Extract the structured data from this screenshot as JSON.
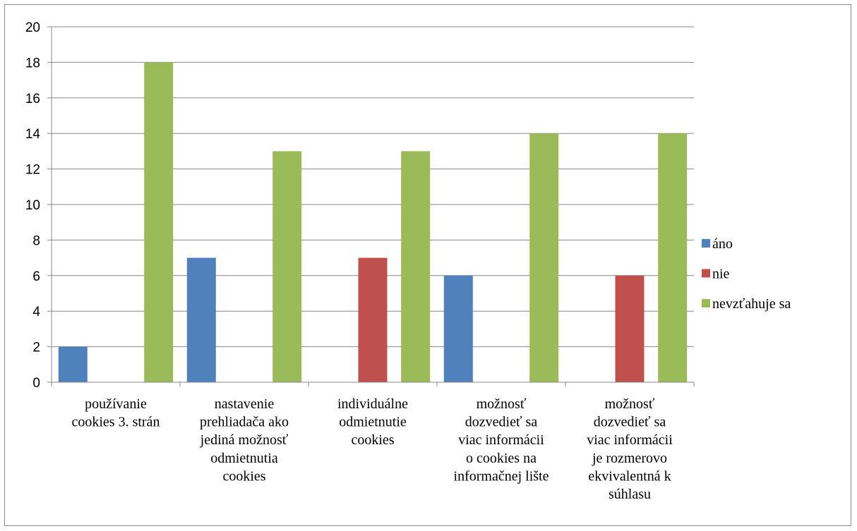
{
  "chart_data": {
    "type": "bar",
    "title": "",
    "xlabel": "",
    "ylabel": "",
    "ylim": [
      0,
      20
    ],
    "yticks": [
      0,
      2,
      4,
      6,
      8,
      10,
      12,
      14,
      16,
      18,
      20
    ],
    "grid": true,
    "legend_position": "right",
    "categories": [
      [
        "používanie",
        "cookies 3. strán"
      ],
      [
        "nastavenie",
        "prehliadača ako",
        "jediná možnosť",
        "odmietnutia",
        "cookies"
      ],
      [
        "individuálne",
        "odmietnutie",
        "cookies"
      ],
      [
        "možnosť",
        "dozvedieť sa",
        "viac informácii",
        "o cookies na",
        "informačnej lište"
      ],
      [
        "možnosť",
        "dozvedieť sa",
        "viac informácii",
        "je rozmerovo",
        "ekvivalentná k",
        "súhlasu"
      ]
    ],
    "series": [
      {
        "name": "áno",
        "color": "#4f81bd",
        "values": [
          2,
          7,
          0,
          6,
          0
        ]
      },
      {
        "name": "nie",
        "color": "#c0504d",
        "values": [
          0,
          0,
          7,
          0,
          6
        ]
      },
      {
        "name": "nevzťahuje sa",
        "color": "#9bbb59",
        "values": [
          18,
          13,
          13,
          14,
          14
        ]
      }
    ]
  }
}
